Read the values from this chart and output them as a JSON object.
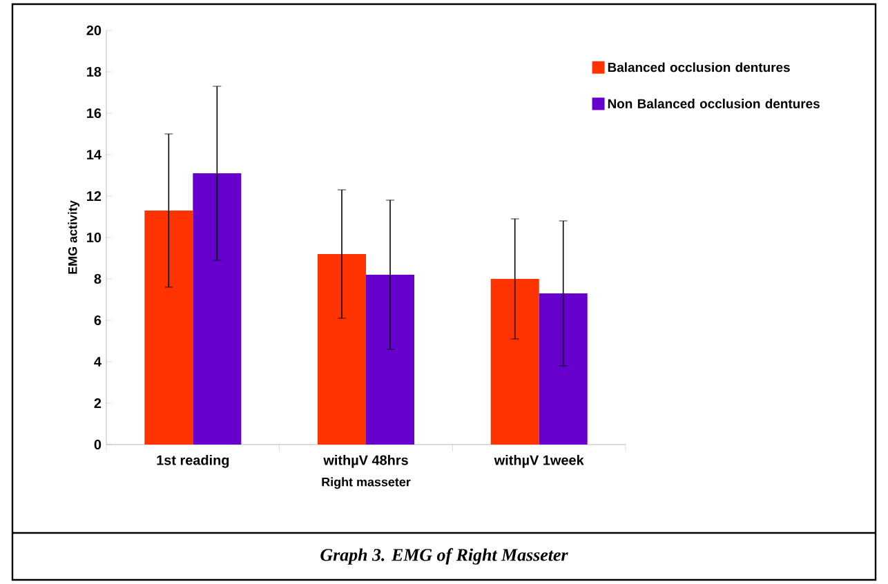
{
  "chart_data": {
    "type": "bar",
    "xlabel": "Right masseter",
    "ylabel": "EMG activity",
    "categories": [
      "1st reading",
      "withµV 48hrs",
      "withµV 1week"
    ],
    "series": [
      {
        "name": "Balanced occlusion dentures",
        "color": "#ff3300",
        "values": [
          11.3,
          9.2,
          8.0
        ],
        "errors": [
          3.7,
          3.1,
          2.9
        ]
      },
      {
        "name": "Non Balanced occlusion dentures",
        "color": "#6600cc",
        "values": [
          13.1,
          8.2,
          7.3
        ],
        "errors": [
          4.2,
          3.6,
          3.5
        ]
      }
    ],
    "ylim": [
      0,
      20
    ],
    "yticks": [
      0,
      2,
      4,
      6,
      8,
      10,
      12,
      14,
      16,
      18,
      20
    ],
    "grid": false,
    "legend": "top right",
    "annotations": [
      "Graph 3. EMG of Right Masseter"
    ]
  }
}
